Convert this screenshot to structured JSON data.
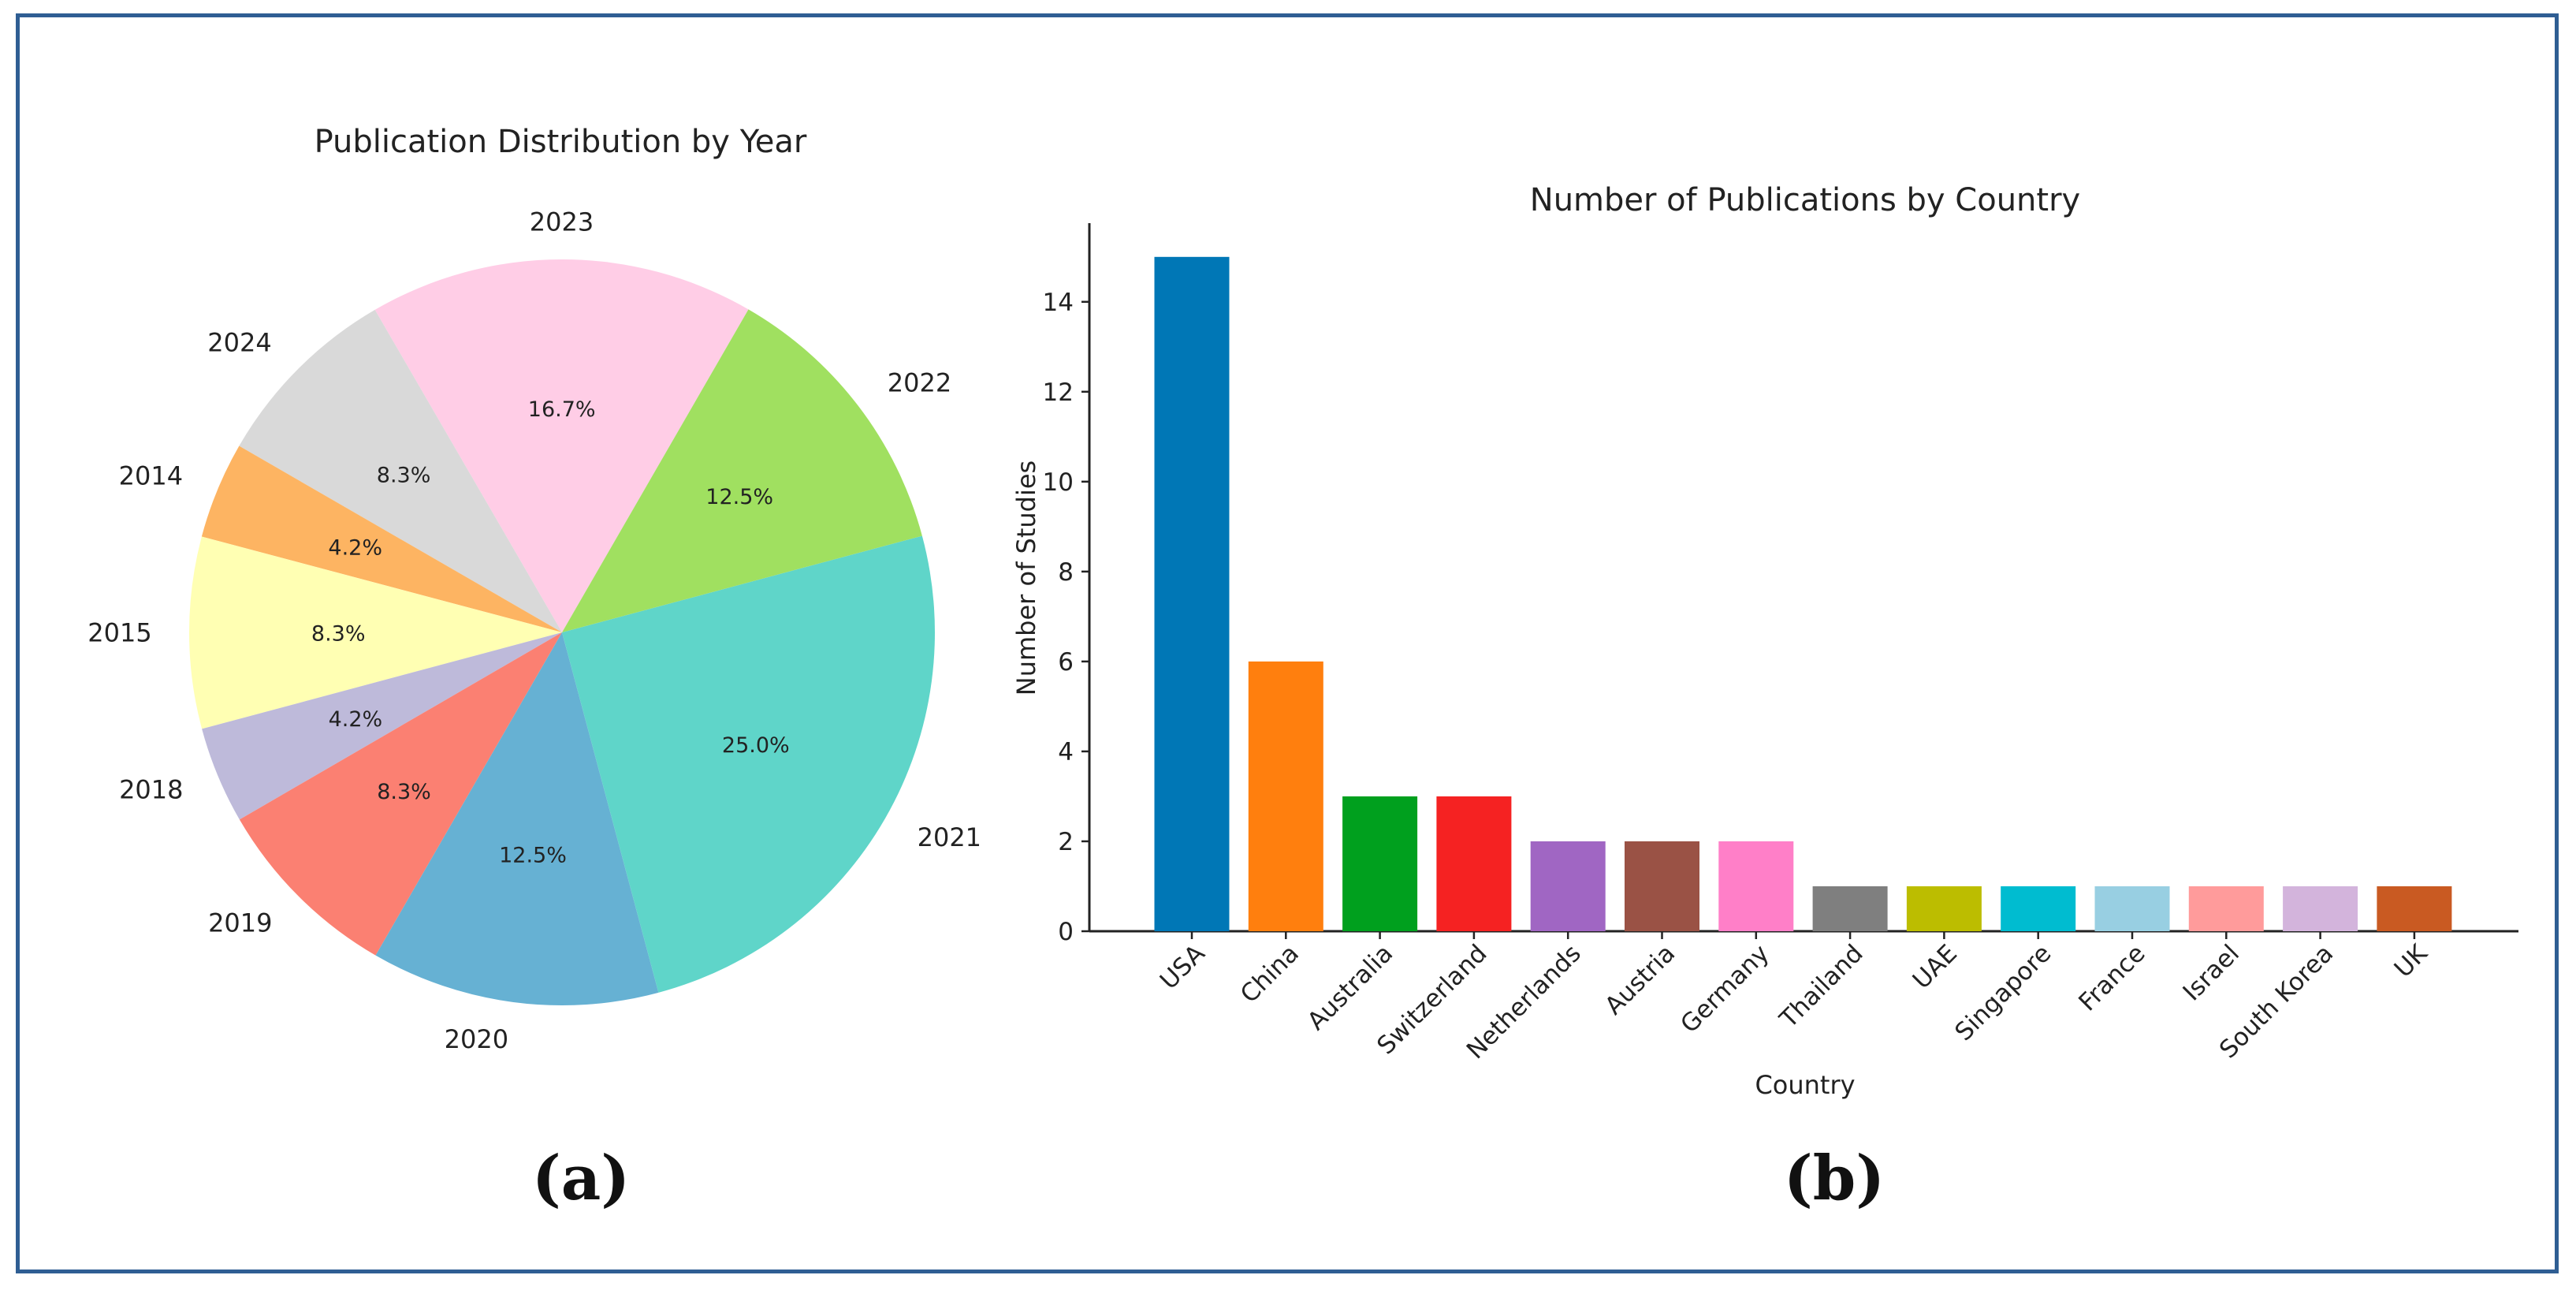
{
  "figure": {
    "border_color": "#2f5e93",
    "panel_a_label": "(a)",
    "panel_b_label": "(b)"
  },
  "chart_data": [
    {
      "type": "pie",
      "title": "Publication Distribution by Year",
      "slices": [
        {
          "label": "2023",
          "value": 16.7,
          "pct_label": "16.7%",
          "color": "#ffcde6"
        },
        {
          "label": "2024",
          "value": 8.3,
          "pct_label": "8.3%",
          "color": "#d9d9d9"
        },
        {
          "label": "2014",
          "value": 4.2,
          "pct_label": "4.2%",
          "color": "#fdb462"
        },
        {
          "label": "2015",
          "value": 8.3,
          "pct_label": "8.3%",
          "color": "#ffffb3"
        },
        {
          "label": "2018",
          "value": 4.2,
          "pct_label": "4.2%",
          "color": "#bebada"
        },
        {
          "label": "2019",
          "value": 8.3,
          "pct_label": "8.3%",
          "color": "#fb8072"
        },
        {
          "label": "2020",
          "value": 12.5,
          "pct_label": "12.5%",
          "color": "#66b1d3"
        },
        {
          "label": "2021",
          "value": 25.0,
          "pct_label": "25.0%",
          "color": "#5fd5c9"
        },
        {
          "label": "2022",
          "value": 12.5,
          "pct_label": "12.5%",
          "color": "#a0e060"
        }
      ],
      "start_angle_deg": 60,
      "direction": "counterclockwise"
    },
    {
      "type": "bar",
      "title": "Number of Publications by Country",
      "xlabel": "Country",
      "ylabel": "Number of Studies",
      "ylim": [
        0,
        15.75
      ],
      "yticks": [
        0,
        2,
        4,
        6,
        8,
        10,
        12,
        14
      ],
      "categories": [
        "USA",
        "China",
        "Australia",
        "Switzerland",
        "Netherlands",
        "Austria",
        "Germany",
        "Thailand",
        "UAE",
        "Singapore",
        "France",
        "Israel",
        "South Korea",
        "UK"
      ],
      "values": [
        15,
        6,
        3,
        3,
        2,
        2,
        2,
        1,
        1,
        1,
        1,
        1,
        1,
        1
      ],
      "colors": [
        "#0077b6",
        "#ff7f0e",
        "#00a01e",
        "#f52222",
        "#a066c3",
        "#9a5245",
        "#ff7fc8",
        "#7f7f7f",
        "#bcbd00",
        "#00bcd0",
        "#98cfe2",
        "#ff9b9b",
        "#d3b4dc",
        "#c95a22"
      ]
    }
  ]
}
